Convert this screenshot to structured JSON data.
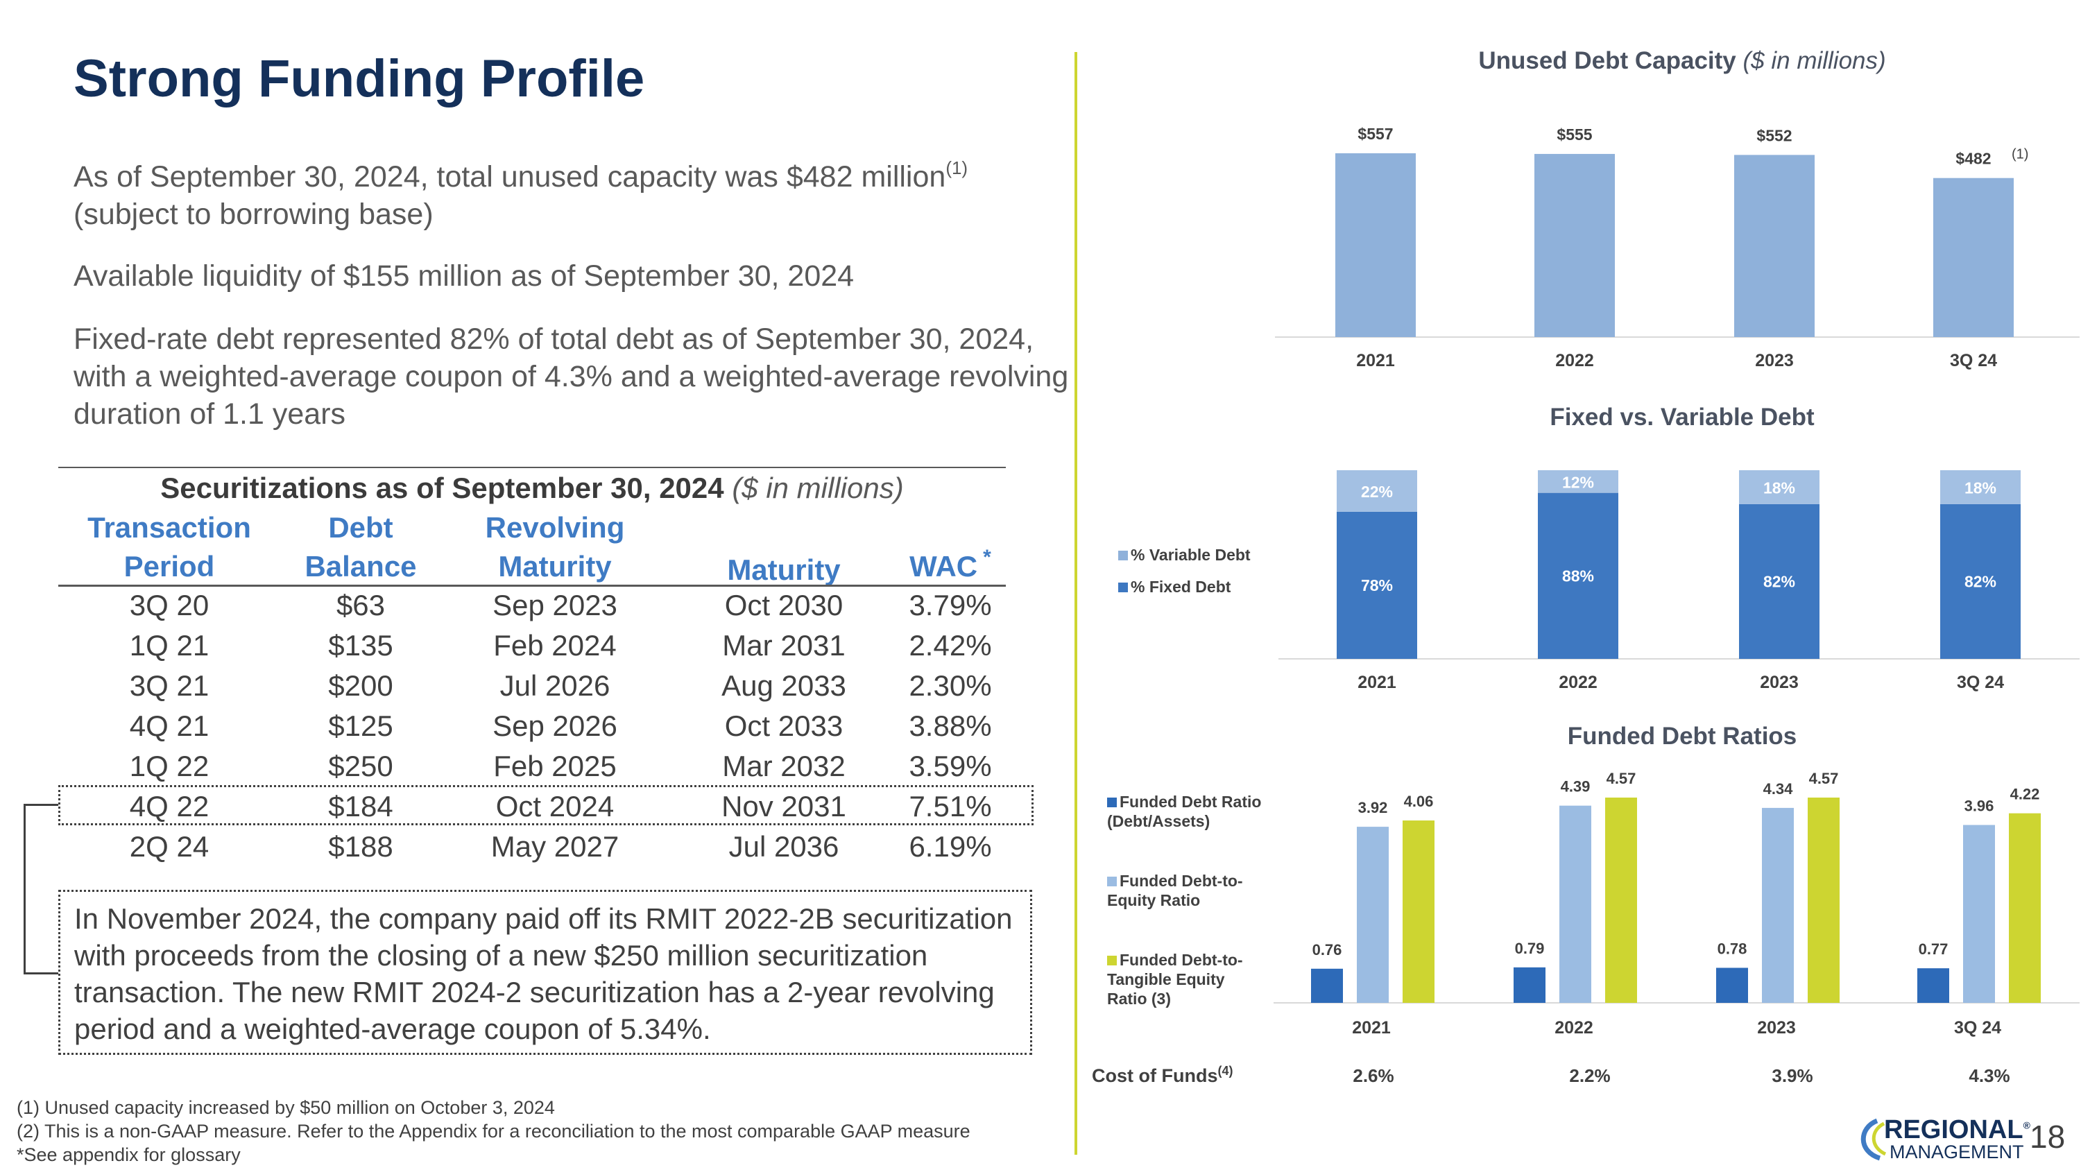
{
  "page": {
    "title": "Strong Funding Profile",
    "bullets": [
      {
        "text": "As of September 30, 2024, total unused capacity was $482 million",
        "sup": "(1)",
        "cont": "(subject to borrowing base)"
      },
      {
        "text": "Available liquidity of $155 million as of September 30, 2024"
      },
      {
        "text": "Fixed-rate debt represented 82% of total debt as of September 30, 2024, with a weighted-average coupon of 4.3% and a weighted-average revolving duration of 1.1 years"
      }
    ],
    "page_number": "18"
  },
  "table": {
    "title": "Securitizations as of September 30, 2024",
    "title_unit": "($ in millions)",
    "headers": {
      "transaction": [
        "Transaction",
        "Period"
      ],
      "debt": [
        "Debt",
        "Balance"
      ],
      "revolving": [
        "Revolving",
        "Maturity"
      ],
      "maturity": "Maturity",
      "wac": "WAC",
      "wac_mark": "*"
    },
    "rows": [
      [
        "3Q 20",
        "$63",
        "Sep 2023",
        "Oct 2030",
        "3.79%"
      ],
      [
        "1Q 21",
        "$135",
        "Feb 2024",
        "Mar 2031",
        "2.42%"
      ],
      [
        "3Q 21",
        "$200",
        "Jul 2026",
        "Aug 2033",
        "2.30%"
      ],
      [
        "4Q 21",
        "$125",
        "Sep 2026",
        "Oct 2033",
        "3.88%"
      ],
      [
        "1Q 22",
        "$250",
        "Feb 2025",
        "Mar 2032",
        "3.59%"
      ],
      [
        "4Q 22",
        "$184",
        "Oct 2024",
        "Nov 2031",
        "7.51%"
      ],
      [
        "2Q 24",
        "$188",
        "May 2027",
        "Jul 2036",
        "6.19%"
      ]
    ],
    "highlight_row": 5
  },
  "note": "In November 2024, the company paid off its RMIT 2022-2B securitization with proceeds from the closing of a new $250 million securitization transaction. The new RMIT 2024-2 securitization has a 2-year revolving period and a weighted-average coupon of 5.34%.",
  "footnotes": [
    "(1) Unused capacity increased by $50 million on October 3, 2024",
    "(2) This is a non-GAAP measure. Refer to the Appendix for a reconciliation to the most comparable GAAP measure",
    "*See appendix for glossary"
  ],
  "logo": {
    "line1": "REGIONAL",
    "line2": "MANAGEMENT",
    "mark": "®"
  },
  "colors": {
    "navy": "#14305a",
    "accent_blue": "#3f7bc4",
    "light_blue": "#8fb1da",
    "medium_blue": "#3e78c1",
    "dark_blue": "#2d6ab8",
    "lime": "#cdd531",
    "pale_blue": "#9bbce2"
  },
  "chart_data": [
    {
      "type": "bar",
      "title": "Unused Debt Capacity",
      "title_unit": "($ in millions)",
      "categories": [
        "2021",
        "2022",
        "2023",
        "3Q 24"
      ],
      "values": [
        557,
        555,
        552,
        482
      ],
      "labels": [
        "$557",
        "$555",
        "$552",
        "$482"
      ],
      "label_notes": [
        "",
        "",
        "",
        "(1)"
      ],
      "ylim": [
        0,
        600
      ]
    },
    {
      "type": "bar",
      "stacked": true,
      "percent": true,
      "title": "Fixed vs. Variable Debt",
      "categories": [
        "2021",
        "2022",
        "2023",
        "3Q 24"
      ],
      "series": [
        {
          "name": "% Fixed Debt",
          "values": [
            78,
            88,
            82,
            82
          ],
          "labels": [
            "78%",
            "88%",
            "82%",
            "82%"
          ]
        },
        {
          "name": "% Variable Debt",
          "values": [
            22,
            12,
            18,
            18
          ],
          "labels": [
            "22%",
            "12%",
            "18%",
            "18%"
          ]
        }
      ],
      "legend": [
        "% Variable Debt",
        "% Fixed Debt"
      ],
      "ylim": [
        0,
        100
      ]
    },
    {
      "type": "bar",
      "title": "Funded Debt Ratios",
      "categories": [
        "2021",
        "2022",
        "2023",
        "3Q 24"
      ],
      "series": [
        {
          "name": "Funded Debt Ratio (Debt/Assets)",
          "values": [
            0.76,
            0.79,
            0.78,
            0.77
          ],
          "labels": [
            "0.76",
            "0.79",
            "0.78",
            "0.77"
          ]
        },
        {
          "name": "Funded Debt-to-Equity Ratio",
          "values": [
            3.92,
            4.39,
            4.34,
            3.96
          ],
          "labels": [
            "3.92",
            "4.39",
            "4.34",
            "3.96"
          ]
        },
        {
          "name": "Funded Debt-to-Tangible Equity Ratio (3)",
          "values": [
            4.06,
            4.57,
            4.57,
            4.22
          ],
          "labels": [
            "4.06",
            "4.57",
            "4.57",
            "4.22"
          ]
        }
      ],
      "legend": [
        [
          "Funded Debt Ratio",
          "(Debt/Assets)"
        ],
        [
          "Funded Debt-to-",
          "Equity Ratio"
        ],
        [
          "Funded Debt-to-",
          "Tangible Equity",
          "Ratio (3)"
        ]
      ],
      "ylim": [
        0,
        5
      ]
    }
  ],
  "cost_of_funds": {
    "label": "Cost of Funds",
    "sup": "(4)",
    "values": [
      "2.6%",
      "2.2%",
      "3.9%",
      "4.3%"
    ]
  }
}
